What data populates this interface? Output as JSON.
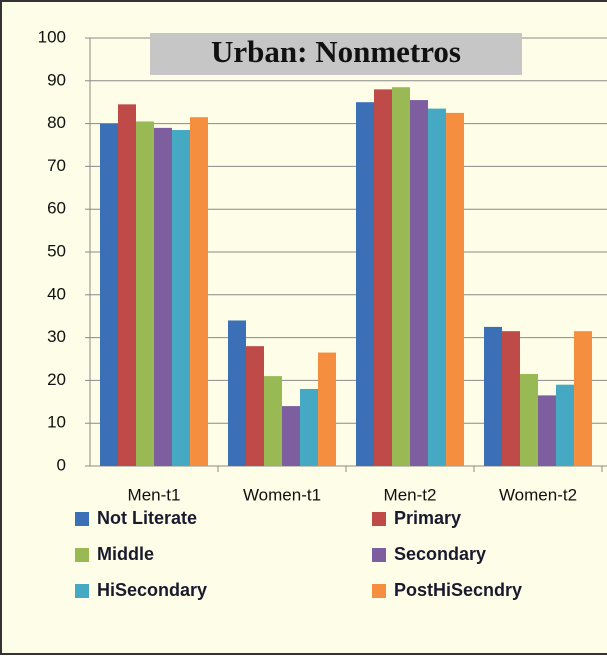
{
  "chart_data": {
    "type": "bar",
    "title": "Urban: Nonmetros",
    "categories": [
      "Men-t1",
      "Women-t1",
      "Men-t2",
      "Women-t2"
    ],
    "series": [
      {
        "name": "Not Literate",
        "color": "#3b6fb6",
        "values": [
          80,
          34,
          85,
          32.5
        ]
      },
      {
        "name": "Primary",
        "color": "#be4b48",
        "values": [
          84.5,
          28,
          88,
          31.5
        ]
      },
      {
        "name": "Middle",
        "color": "#98b954",
        "values": [
          80.5,
          21,
          88.5,
          21.5
        ]
      },
      {
        "name": "Secondary",
        "color": "#7d5fa0",
        "values": [
          79,
          14,
          85.5,
          16.5
        ]
      },
      {
        "name": "HiSecondary",
        "color": "#46a9c3",
        "values": [
          78.5,
          18,
          83.5,
          19
        ]
      },
      {
        "name": "PostHiSecndry",
        "color": "#f58f3f",
        "values": [
          81.5,
          26.5,
          82.5,
          31.5
        ]
      }
    ],
    "ylim": [
      0,
      100
    ],
    "yticks": [
      0,
      10,
      20,
      30,
      40,
      50,
      60,
      70,
      80,
      90,
      100
    ],
    "grid": true
  }
}
